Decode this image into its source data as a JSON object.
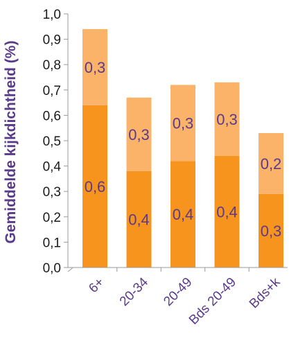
{
  "chart_data": {
    "type": "bar",
    "stacked": true,
    "categories": [
      "6+",
      "20-34",
      "20-49",
      "Bds 20-49",
      "Bds+k"
    ],
    "series": [
      {
        "values": [
          0.64,
          0.38,
          0.42,
          0.44,
          0.29
        ],
        "labels": [
          "0,6",
          "0,4",
          "0,4",
          "0,4",
          "0,3"
        ],
        "color": "#f7941d"
      },
      {
        "values": [
          0.3,
          0.29,
          0.3,
          0.29,
          0.24
        ],
        "labels": [
          "0,3",
          "0,3",
          "0,3",
          "0,3",
          "0,2"
        ],
        "color": "#fbb36a"
      }
    ],
    "ylabel": "Gemiddelde kijkdichtheid (%)",
    "ylim": [
      0,
      1.0
    ],
    "yticks": [
      "0,0",
      "0,1",
      "0,2",
      "0,3",
      "0,4",
      "0,5",
      "0,6",
      "0,7",
      "0,8",
      "0,9",
      "1,0"
    ],
    "grid": false,
    "legend": "none"
  }
}
